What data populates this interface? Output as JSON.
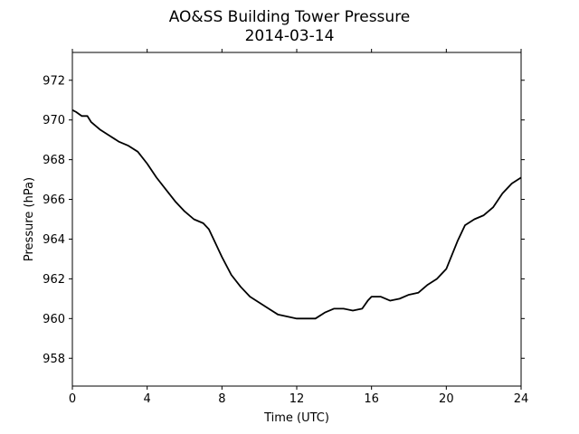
{
  "chart_data": {
    "type": "line",
    "title": "AO&SS Building Tower Pressure",
    "subtitle": "2014-03-14",
    "xlabel": "Time (UTC)",
    "ylabel": "Pressure (hPa)",
    "xlim": [
      0,
      24
    ],
    "ylim": [
      956.6,
      973.4
    ],
    "xticks": [
      0,
      4,
      8,
      12,
      16,
      20,
      24
    ],
    "yticks": [
      958,
      960,
      962,
      964,
      966,
      968,
      970,
      972
    ],
    "grid": false,
    "legend": "none",
    "series": [
      {
        "color": "#000000",
        "x": [
          0,
          0.2,
          0.5,
          0.8,
          1.0,
          1.5,
          2.0,
          2.5,
          3.0,
          3.5,
          4.0,
          4.5,
          5.0,
          5.5,
          6.0,
          6.5,
          7.0,
          7.3,
          7.6,
          8.0,
          8.5,
          9.0,
          9.5,
          10.0,
          10.5,
          11.0,
          11.5,
          12.0,
          12.5,
          13.0,
          13.5,
          14.0,
          14.5,
          15.0,
          15.5,
          15.8,
          16.0,
          16.5,
          17.0,
          17.5,
          18.0,
          18.5,
          19.0,
          19.5,
          20.0,
          20.3,
          20.6,
          21.0,
          21.5,
          22.0,
          22.5,
          23.0,
          23.5,
          24.0
        ],
        "y": [
          970.5,
          970.4,
          970.2,
          970.2,
          969.9,
          969.5,
          969.2,
          968.9,
          968.7,
          968.4,
          967.8,
          967.1,
          966.5,
          965.9,
          965.4,
          965.0,
          964.8,
          964.5,
          963.9,
          963.1,
          962.2,
          961.6,
          961.1,
          960.8,
          960.5,
          960.2,
          960.1,
          960.0,
          960.0,
          960.0,
          960.3,
          960.5,
          960.5,
          960.4,
          960.5,
          960.9,
          961.1,
          961.1,
          960.9,
          961.0,
          961.2,
          961.3,
          961.7,
          962.0,
          962.5,
          963.2,
          963.9,
          964.7,
          965.0,
          965.2,
          965.6,
          966.3,
          966.8,
          967.1
        ]
      }
    ]
  }
}
